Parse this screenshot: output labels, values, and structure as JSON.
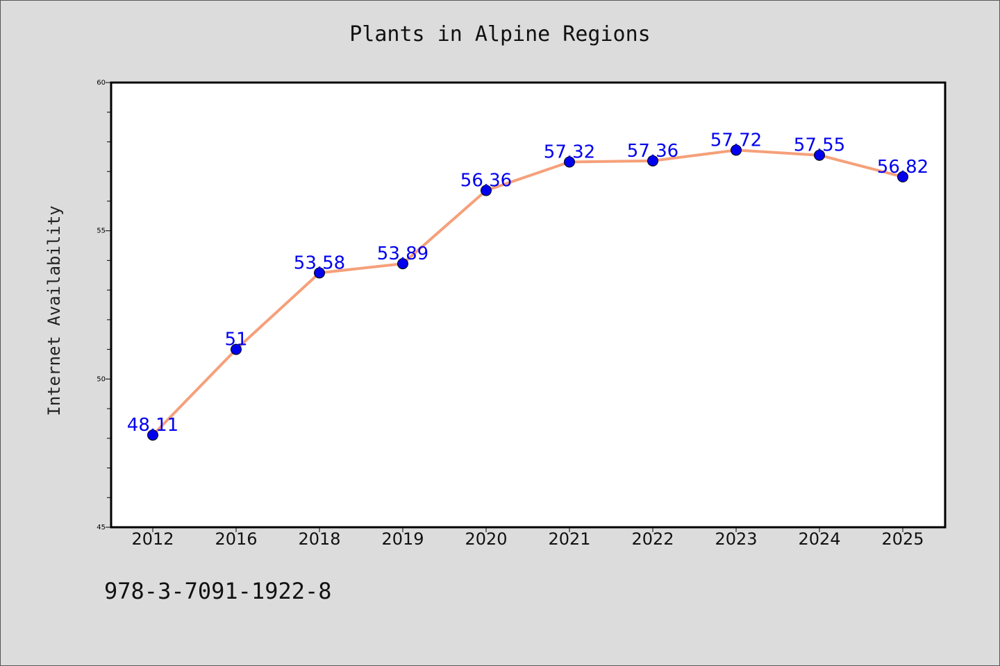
{
  "page": {
    "footer_code": "978-3-7091-1922-8"
  },
  "chart_data": {
    "type": "line",
    "title": "Plants in Alpine Regions",
    "xlabel": "",
    "ylabel": "Internet Availability",
    "categories": [
      "2012",
      "2016",
      "2018",
      "2019",
      "2020",
      "2021",
      "2022",
      "2023",
      "2024",
      "2025"
    ],
    "series": [
      {
        "values": [
          48.11,
          51,
          53.58,
          53.89,
          56.36,
          57.32,
          57.36,
          57.72,
          57.55,
          56.82
        ],
        "line_color": "#f5a07a",
        "marker_color": "#0000ee"
      }
    ],
    "data_labels": [
      "48.11",
      "51",
      "53.58",
      "53.89",
      "56.36",
      "57.32",
      "57.36",
      "57.72",
      "57.55",
      "56.82"
    ],
    "ylim": [
      45,
      60
    ],
    "yticks": [
      "45",
      "50",
      "55",
      "60"
    ],
    "grid": false,
    "label_color": "#0000ee"
  }
}
